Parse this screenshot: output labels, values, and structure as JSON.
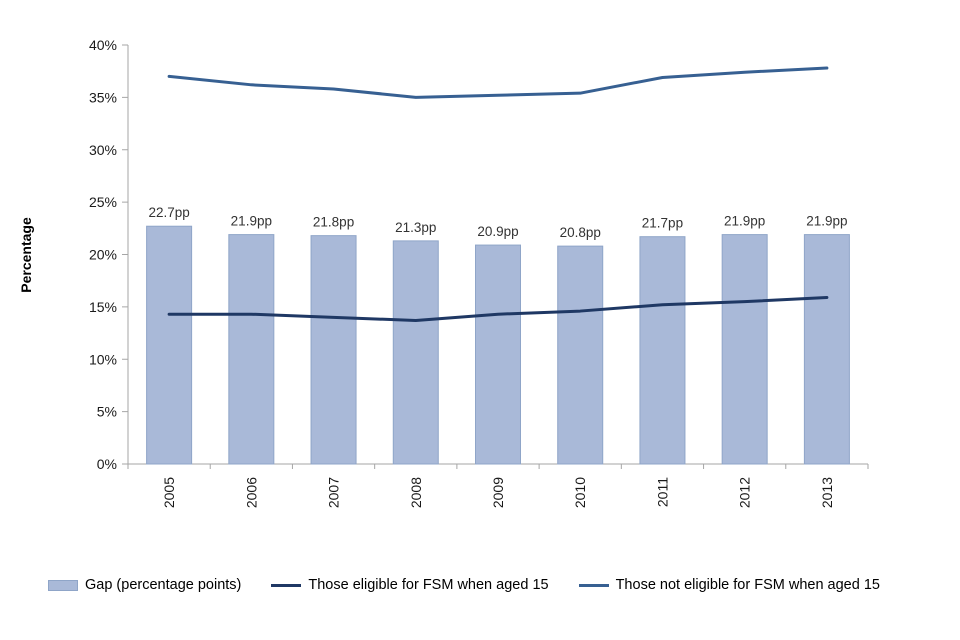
{
  "chart_data": {
    "type": "combo",
    "title": "",
    "ylabel": "Percentage",
    "ylim": [
      0,
      40
    ],
    "ytick_step": 5,
    "ytick_suffix": "%",
    "grid": "off",
    "legend_position": "bottom",
    "categories": [
      "2005",
      "2006",
      "2007",
      "2008",
      "2009",
      "2010",
      "2011",
      "2012",
      "2013"
    ],
    "bars": {
      "name": "Gap (percentage points)",
      "values": [
        22.7,
        21.9,
        21.8,
        21.3,
        20.9,
        20.8,
        21.7,
        21.9,
        21.9
      ],
      "labels": [
        "22.7pp",
        "21.9pp",
        "21.8pp",
        "21.3pp",
        "20.9pp",
        "20.8pp",
        "21.7pp",
        "21.9pp",
        "21.9pp"
      ],
      "color": "#a9b9d8",
      "border": "#8fa5c8"
    },
    "lines": [
      {
        "name": "Those eligible for FSM when aged 15",
        "values": [
          14.3,
          14.3,
          14.0,
          13.7,
          14.3,
          14.6,
          15.2,
          15.5,
          15.9
        ],
        "color": "#1f3864"
      },
      {
        "name": "Those not eligible for FSM when aged 15",
        "values": [
          37.0,
          36.2,
          35.8,
          35.0,
          35.2,
          35.4,
          36.9,
          37.4,
          37.8
        ],
        "color": "#376092"
      }
    ],
    "legend": [
      "Gap (percentage points)",
      "Those eligible for FSM when aged 15",
      "Those not eligible for FSM when aged 15"
    ],
    "axis_color": "#a6a6a6",
    "text_color": "#1a1a1a"
  }
}
